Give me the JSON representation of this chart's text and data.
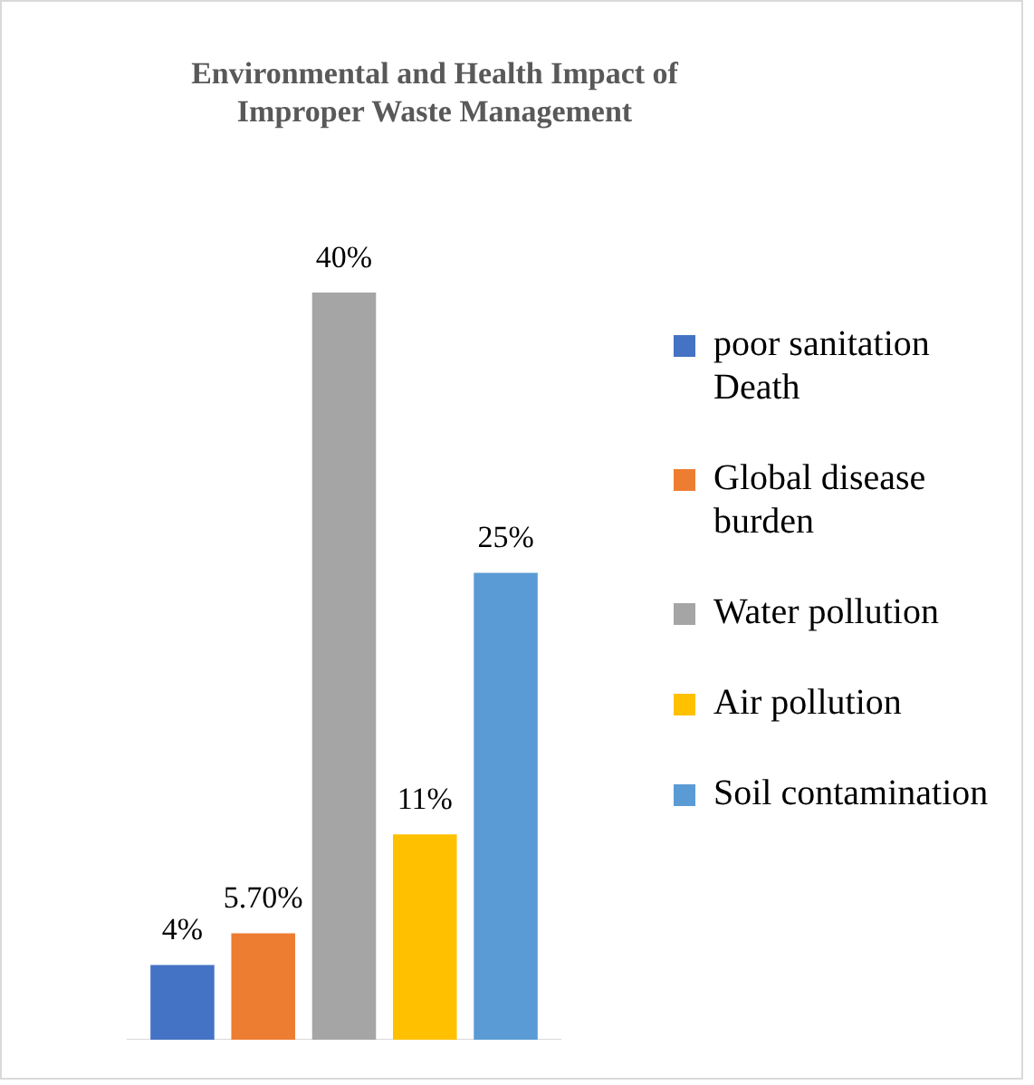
{
  "chart_data": {
    "type": "bar",
    "title": "Environmental and Health Impact of Improper Waste Management",
    "categories": [
      null
    ],
    "series": [
      {
        "name": " poor sanitation Death",
        "color": "#4472c4",
        "values": [
          4
        ],
        "value_labels": [
          "4%"
        ]
      },
      {
        "name": "Global disease burden",
        "color": "#ed7d31",
        "values": [
          5.7
        ],
        "value_labels": [
          "5.70%"
        ]
      },
      {
        "name": "Water pollution",
        "color": "#a5a5a5",
        "values": [
          40
        ],
        "value_labels": [
          "40%"
        ]
      },
      {
        "name": "Air pollution",
        "color": "#ffc000",
        "values": [
          11
        ],
        "value_labels": [
          "11%"
        ]
      },
      {
        "name": "Soil contamination",
        "color": "#5b9bd5",
        "values": [
          25
        ],
        "value_labels": [
          "25%"
        ]
      }
    ],
    "legend": "right",
    "grid": false
  }
}
